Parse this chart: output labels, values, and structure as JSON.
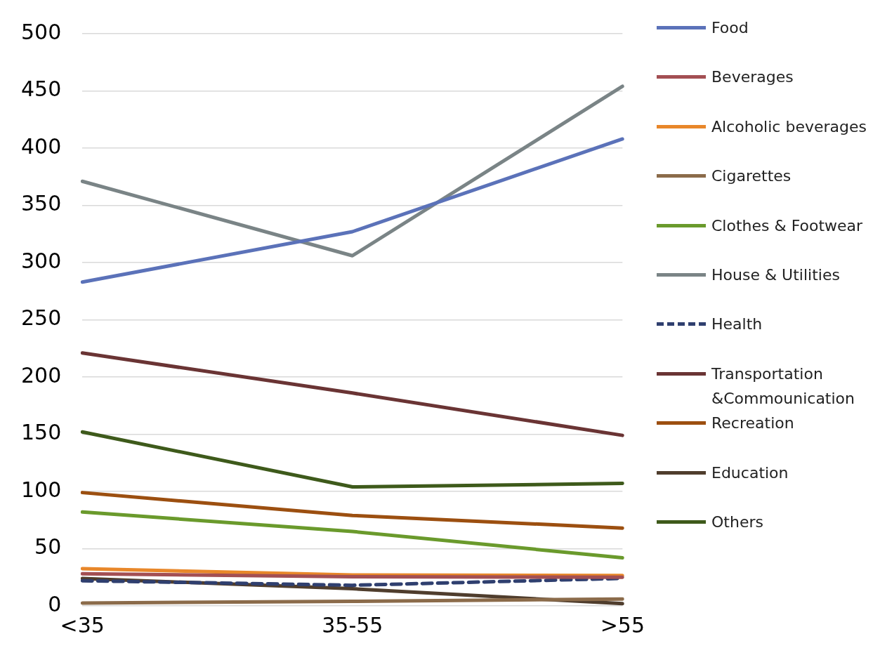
{
  "chart_data": {
    "type": "line",
    "categories": [
      "<35",
      "35-55",
      ">55"
    ],
    "series": [
      {
        "name": "Food",
        "color": "#5b72b9",
        "values": [
          283,
          327,
          408
        ]
      },
      {
        "name": "Beverages",
        "color": "#a34f53",
        "values": [
          28,
          25.5,
          25
        ]
      },
      {
        "name": "Alcoholic beverages",
        "color": "#e8872a",
        "values": [
          32.5,
          27,
          26.5
        ]
      },
      {
        "name": "Cigarettes",
        "color": "#8b6b4a",
        "values": [
          2.5,
          4,
          6
        ]
      },
      {
        "name": "Clothes & Footwear",
        "color": "#6a9a2c",
        "values": [
          82,
          65,
          42
        ]
      },
      {
        "name": "House & Utilities",
        "color": "#7a8486",
        "values": [
          371,
          306,
          454
        ]
      },
      {
        "name": "Health",
        "color": "#2f3f6f",
        "values": [
          22,
          18,
          24
        ],
        "line_style": "dashed"
      },
      {
        "name": "Transportation &Commounication",
        "color": "#6a3434",
        "values": [
          221,
          186,
          149
        ]
      },
      {
        "name": "Recreation",
        "color": "#9c4f10",
        "values": [
          99,
          79,
          68
        ]
      },
      {
        "name": "Education",
        "color": "#4f3d2d",
        "values": [
          24,
          15,
          2
        ]
      },
      {
        "name": "Others",
        "color": "#3e5a1b",
        "values": [
          152,
          104,
          107
        ]
      }
    ],
    "ylim": [
      0,
      500
    ],
    "yticks": [
      0,
      50,
      100,
      150,
      200,
      250,
      300,
      350,
      400,
      450,
      500
    ],
    "grid": "y",
    "legend": "right",
    "marker": "none",
    "line_style": "solid"
  }
}
